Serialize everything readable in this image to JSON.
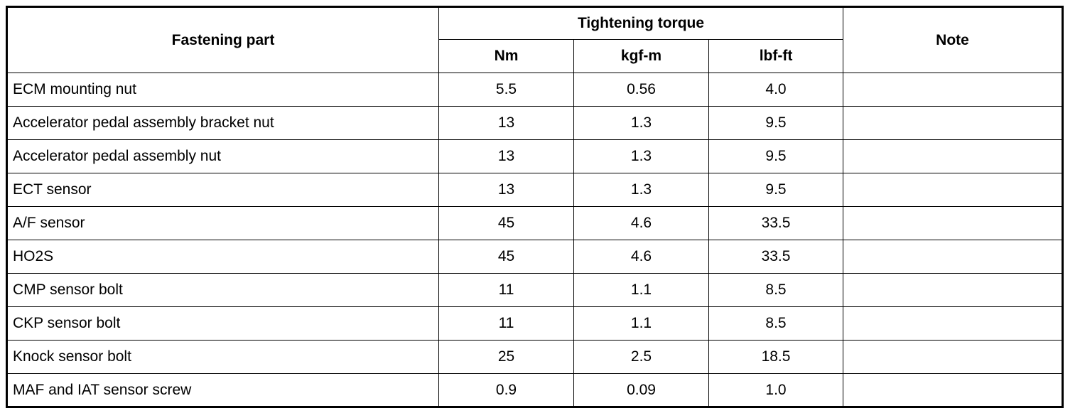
{
  "table": {
    "header": {
      "part": "Fastening part",
      "torque": "Tightening torque",
      "note": "Note",
      "units": [
        "Nm",
        "kgf-m",
        "lbf-ft"
      ]
    },
    "rows": [
      [
        "ECM mounting nut",
        "5.5",
        "0.56",
        "4.0"
      ],
      [
        "Accelerator pedal assembly bracket nut",
        "13",
        "1.3",
        "9.5"
      ],
      [
        "Accelerator pedal assembly nut",
        "13",
        "1.3",
        "9.5"
      ],
      [
        "ECT sensor",
        "13",
        "1.3",
        "9.5"
      ],
      [
        "A/F sensor",
        "45",
        "4.6",
        "33.5"
      ],
      [
        "HO2S",
        "45",
        "4.6",
        "33.5"
      ],
      [
        "CMP sensor bolt",
        "11",
        "1.1",
        "8.5"
      ],
      [
        "CKP sensor bolt",
        "11",
        "1.1",
        "8.5"
      ],
      [
        "Knock sensor bolt",
        "25",
        "2.5",
        "18.5"
      ],
      [
        "MAF and IAT sensor screw",
        "0.9",
        "0.09",
        "1.0"
      ]
    ]
  }
}
